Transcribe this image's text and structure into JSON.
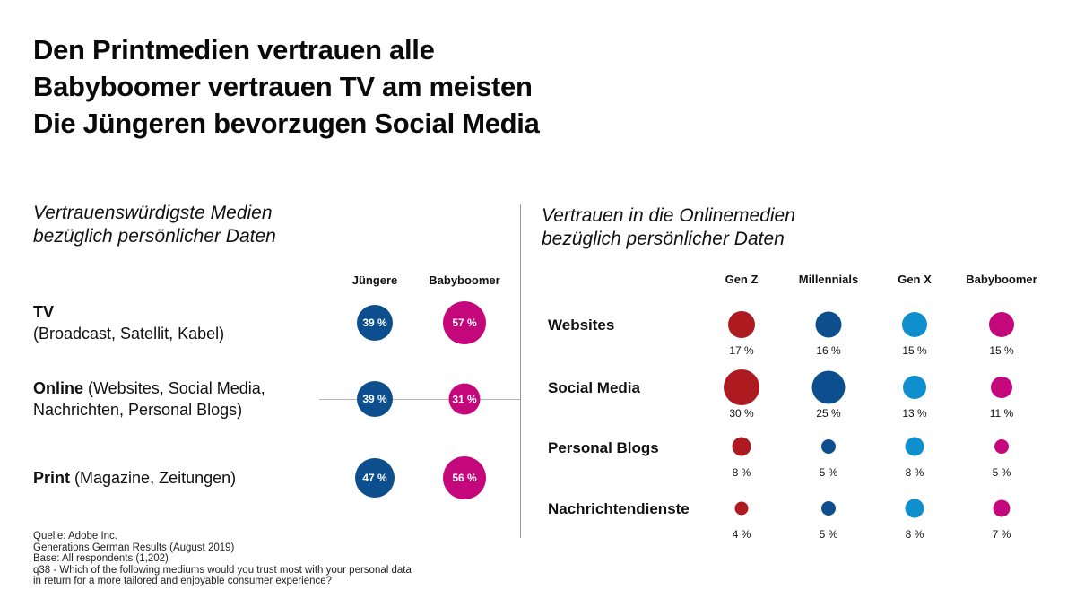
{
  "headline": [
    "Den Printmedien vertrauen alle",
    "Babyboomer vertrauen TV am meisten",
    "Die Jüngeren bevorzugen Social Media"
  ],
  "colors": {
    "juengere": "#0d4f8e",
    "babyboomer": "#c4087b",
    "gen_z": "#ad1a20",
    "millennials": "#0d4f8e",
    "gen_x": "#0f8fce",
    "babyboomer_online": "#c4087b",
    "divider": "#9a9a9a"
  },
  "chart_data": [
    {
      "type": "bubble-table",
      "title": "Vertrauenswürdigste Medien bezüglich persönlicher Daten",
      "title_lines": [
        "Vertrauenswürdigste Medien",
        "bezüglich persönlicher Daten"
      ],
      "unit": "%",
      "series": [
        {
          "name": "Jüngere",
          "color_key": "juengere",
          "values": [
            39,
            39,
            47
          ]
        },
        {
          "name": "Babyboomer",
          "color_key": "babyboomer",
          "values": [
            57,
            31,
            56
          ]
        }
      ],
      "categories": [
        {
          "name": "TV",
          "detail": "(Broadcast, Satellit, Kabel)"
        },
        {
          "name": "Online",
          "detail": "(Websites, Social Media, Nachrichten, Personal Blogs)",
          "detail_line1": " (Websites, Social Media,",
          "detail_line2": "Nachrichten, Personal Blogs)"
        },
        {
          "name": "Print",
          "detail": "(Magazine, Zeitungen)"
        }
      ],
      "labels": [
        [
          "39 %",
          "57 %"
        ],
        [
          "39 %",
          "31 %"
        ],
        [
          "47 %",
          "56 %"
        ]
      ]
    },
    {
      "type": "bubble-table",
      "title": "Vertrauen in die Onlinemedien bezüglich persönlicher Daten",
      "title_lines": [
        "Vertrauen in die Onlinemedien",
        "bezüglich persönlicher Daten"
      ],
      "unit": "%",
      "series": [
        {
          "name": "Gen Z",
          "color_key": "gen_z",
          "values": [
            17,
            30,
            8,
            4
          ]
        },
        {
          "name": "Millennials",
          "color_key": "millennials",
          "values": [
            16,
            25,
            5,
            5
          ]
        },
        {
          "name": "Gen X",
          "color_key": "gen_x",
          "values": [
            15,
            13,
            8,
            8
          ]
        },
        {
          "name": "Babyboomer",
          "color_key": "babyboomer_online",
          "values": [
            15,
            11,
            5,
            7
          ]
        }
      ],
      "categories": [
        "Websites",
        "Social Media",
        "Personal Blogs",
        "Nachrichtendienste"
      ],
      "labels": [
        [
          "17 %",
          "16 %",
          "15 %",
          "15 %"
        ],
        [
          "30 %",
          "25 %",
          "13 %",
          "11 %"
        ],
        [
          "8 %",
          "5 %",
          "8 %",
          "5 %"
        ],
        [
          "4 %",
          "5 %",
          "8 %",
          "7 %"
        ]
      ]
    }
  ],
  "source": [
    "Quelle: Adobe Inc.",
    "Generations German Results (August 2019)",
    "Base: All respondents (1,202)",
    "q38 - Which of the following mediums would you trust most with your personal data",
    "in return for a more tailored and enjoyable consumer experience?"
  ]
}
